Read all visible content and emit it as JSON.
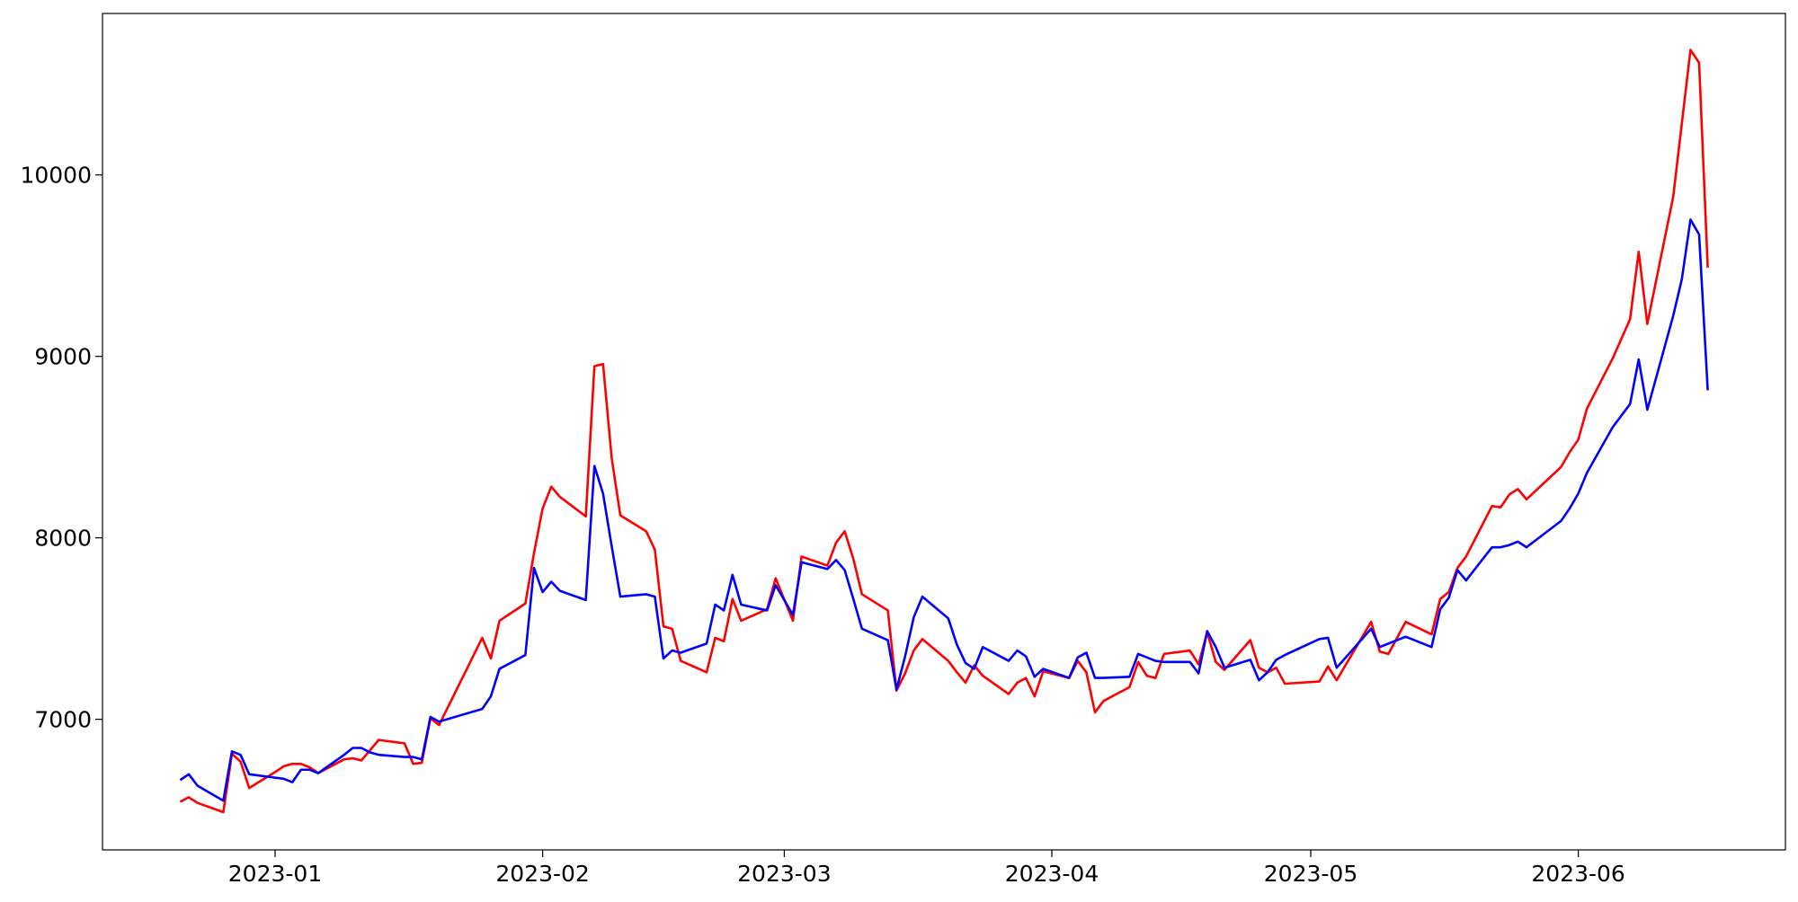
{
  "chart_data": {
    "type": "line",
    "x": [
      -11,
      -10,
      -9,
      -6,
      -5,
      -4,
      -3,
      0,
      1,
      2,
      3,
      4,
      5,
      8,
      9,
      10,
      11,
      12,
      15,
      16,
      17,
      18,
      19,
      24,
      25,
      26,
      29,
      30,
      31,
      32,
      33,
      36,
      37,
      38,
      39,
      40,
      43,
      44,
      45,
      46,
      47,
      50,
      51,
      52,
      53,
      54,
      57,
      58,
      60,
      61,
      64,
      65,
      66,
      67,
      68,
      71,
      72,
      73,
      74,
      75,
      78,
      79,
      80,
      81,
      82,
      85,
      86,
      87,
      88,
      89,
      92,
      93,
      94,
      95,
      96,
      99,
      100,
      101,
      102,
      103,
      106,
      107,
      108,
      109,
      110,
      113,
      114,
      115,
      116,
      117,
      121,
      122,
      123,
      127,
      128,
      129,
      131,
      134,
      135,
      136,
      137,
      138,
      141,
      142,
      143,
      144,
      145,
      149,
      150,
      151,
      152,
      155,
      157,
      158,
      159,
      162,
      163,
      164,
      165,
      166
    ],
    "series": [
      {
        "color": "#ff0000",
        "values": [
          6545,
          6570,
          6539,
          6488,
          6810,
          6766,
          6621,
          6709,
          6741,
          6754,
          6754,
          6735,
          6703,
          6779,
          6785,
          6773,
          6829,
          6886,
          6867,
          6754,
          6760,
          7006,
          6968,
          7449,
          7335,
          7543,
          7638,
          7916,
          8162,
          8282,
          8226,
          8118,
          8946,
          8958,
          8440,
          8124,
          8036,
          7935,
          7512,
          7499,
          7322,
          7259,
          7449,
          7430,
          7663,
          7543,
          7606,
          7777,
          7543,
          7897,
          7847,
          7973,
          8036,
          7884,
          7689,
          7600,
          7158,
          7253,
          7379,
          7442,
          7322,
          7259,
          7202,
          7297,
          7240,
          7139,
          7202,
          7227,
          7126,
          7265,
          7227,
          7322,
          7259,
          7038,
          7101,
          7177,
          7316,
          7240,
          7227,
          7360,
          7379,
          7303,
          7480,
          7316,
          7272,
          7436,
          7284,
          7259,
          7284,
          7196,
          7208,
          7291,
          7215,
          7537,
          7373,
          7360,
          7537,
          7468,
          7663,
          7701,
          7834,
          7897,
          8175,
          8168,
          8238,
          8269,
          8212,
          8390,
          8472,
          8541,
          8712,
          8990,
          9205,
          9577,
          9179,
          9880,
          10285,
          10689,
          10619,
          9489
        ]
      },
      {
        "color": "#0000ff",
        "values": [
          6665,
          6697,
          6634,
          6551,
          6823,
          6804,
          6697,
          6678,
          6672,
          6653,
          6722,
          6722,
          6703,
          6804,
          6842,
          6842,
          6817,
          6804,
          6792,
          6792,
          6779,
          7013,
          6987,
          7057,
          7126,
          7278,
          7354,
          7834,
          7701,
          7758,
          7708,
          7657,
          8396,
          8244,
          7954,
          7676,
          7689,
          7676,
          7335,
          7379,
          7367,
          7417,
          7632,
          7600,
          7796,
          7632,
          7600,
          7739,
          7575,
          7865,
          7828,
          7878,
          7822,
          7663,
          7499,
          7436,
          7164,
          7347,
          7562,
          7676,
          7556,
          7411,
          7310,
          7278,
          7398,
          7322,
          7379,
          7347,
          7234,
          7278,
          7228,
          7341,
          7367,
          7228,
          7228,
          7234,
          7360,
          7341,
          7322,
          7316,
          7316,
          7253,
          7486,
          7398,
          7284,
          7328,
          7215,
          7259,
          7328,
          7354,
          7442,
          7449,
          7284,
          7499,
          7398,
          7417,
          7455,
          7398,
          7606,
          7670,
          7822,
          7765,
          7948,
          7948,
          7960,
          7979,
          7948,
          8093,
          8162,
          8244,
          8358,
          8611,
          8737,
          8983,
          8706,
          9224,
          9426,
          9754,
          9672,
          8813
        ]
      }
    ],
    "xlim": [
      -20,
      175
    ],
    "xticks": [
      {
        "value": 0,
        "label": "2023-01"
      },
      {
        "value": 31,
        "label": "2023-02"
      },
      {
        "value": 59,
        "label": "2023-03"
      },
      {
        "value": 90,
        "label": "2023-04"
      },
      {
        "value": 120,
        "label": "2023-05"
      },
      {
        "value": 151,
        "label": "2023-06"
      }
    ],
    "ylim": [
      6280,
      10890
    ],
    "yticks": [
      7000,
      8000,
      9000,
      10000
    ],
    "grid": false
  }
}
